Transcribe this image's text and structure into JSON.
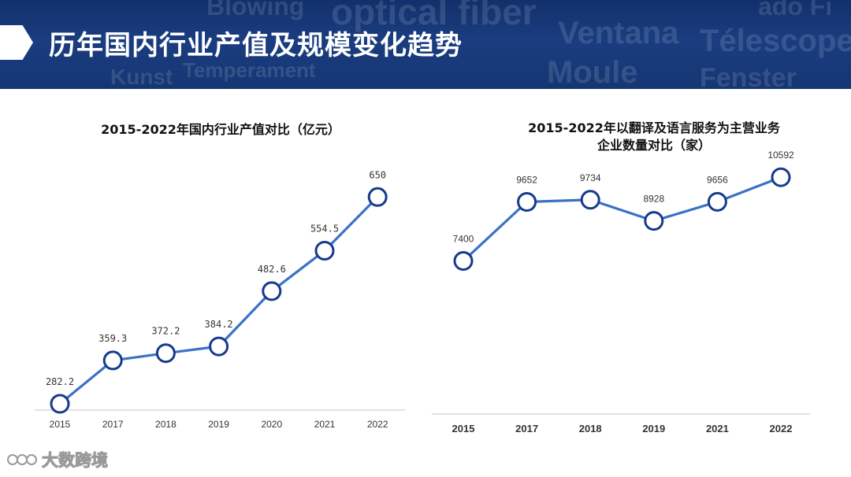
{
  "page": {
    "title": "历年国内行业产值及规模变化趋势",
    "banner_words": [
      "optical fiber",
      "Ventana",
      "Télescope",
      "Moule",
      "Fenster",
      "Blowing",
      "Kunst",
      "Temperament",
      "ado Fi"
    ]
  },
  "colors": {
    "banner": "#163872",
    "line": "#3a72c4",
    "marker_stroke": "#163a8c",
    "axis": "#d9d9d9"
  },
  "chart_data": [
    {
      "type": "line",
      "title": "2015-2022年国内行业产值对比（亿元）",
      "categories": [
        "2015",
        "2017",
        "2018",
        "2019",
        "2020",
        "2021",
        "2022"
      ],
      "values": [
        282.2,
        359.3,
        372.2,
        384.2,
        482.6,
        554.5,
        650
      ],
      "value_labels": [
        "282.2",
        "359.3",
        "372.2",
        "384.2",
        "482.6",
        "554.5",
        "650"
      ],
      "ylim": [
        250,
        670
      ],
      "grid": false,
      "legend": "none"
    },
    {
      "type": "line",
      "title_lines": [
        "2015-2022年以翻译及语言服务为主营业务",
        "企业数量对比（家）"
      ],
      "categories": [
        "2015",
        "2017",
        "2018",
        "2019",
        "2021",
        "2022"
      ],
      "values": [
        7400,
        9652,
        9734,
        8928,
        9656,
        10592
      ],
      "value_labels": [
        "7400",
        "9652",
        "9734",
        "8928",
        "9656",
        "10592"
      ],
      "ylim": [
        0,
        13000
      ],
      "grid": false,
      "legend": "none"
    }
  ],
  "watermark": {
    "logo_mark": "ꀀ",
    "text": "大数跨境"
  }
}
